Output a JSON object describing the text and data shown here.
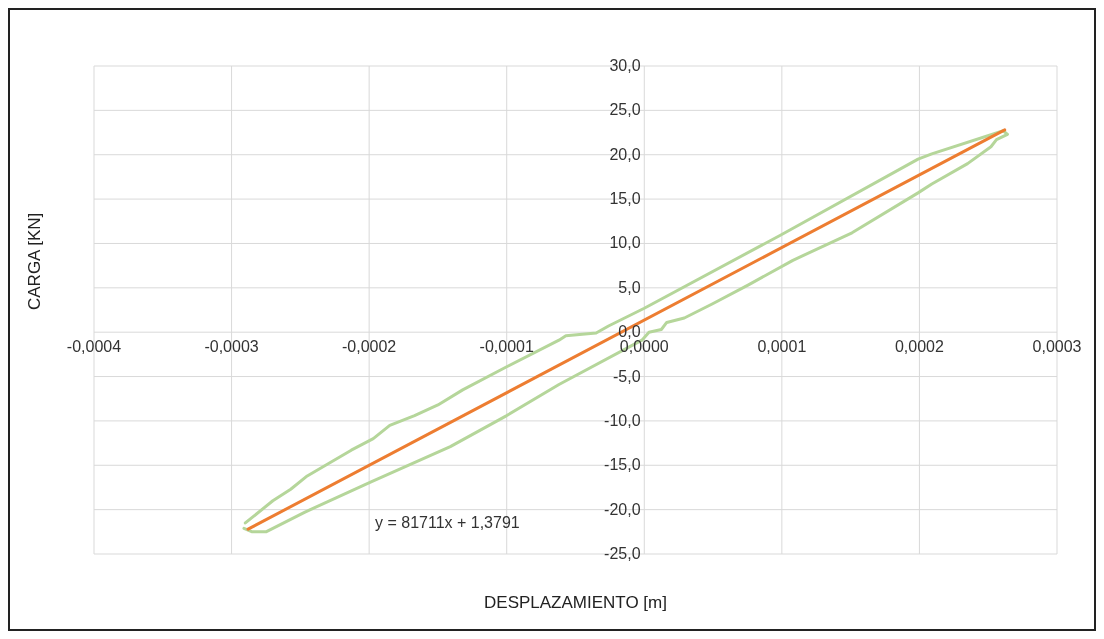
{
  "chart_data": {
    "type": "line",
    "xlabel": "DESPLAZAMIENTO [m]",
    "ylabel": "CARGA [KN]",
    "xlim": [
      -0.0004,
      0.0003
    ],
    "xticks": [
      {
        "value": -0.0004,
        "label": "-0,0004"
      },
      {
        "value": -0.0003,
        "label": "-0,0003"
      },
      {
        "value": -0.0002,
        "label": "-0,0002"
      },
      {
        "value": -0.0001,
        "label": "-0,0001"
      },
      {
        "value": 0,
        "label": "0,0000"
      },
      {
        "value": 0.0001,
        "label": "0,0001"
      },
      {
        "value": 0.0002,
        "label": "0,0002"
      },
      {
        "value": 0.0003,
        "label": "0,0003"
      }
    ],
    "ylim": [
      -25,
      30
    ],
    "yticks": [
      {
        "value": -25,
        "label": "-25,0"
      },
      {
        "value": -20,
        "label": "-20,0"
      },
      {
        "value": -15,
        "label": "-15,0"
      },
      {
        "value": -10,
        "label": "-10,0"
      },
      {
        "value": -5,
        "label": "-5,0"
      },
      {
        "value": 0,
        "label": "0,0"
      },
      {
        "value": 5,
        "label": "5,0"
      },
      {
        "value": 10,
        "label": "10,0"
      },
      {
        "value": 15,
        "label": "15,0"
      },
      {
        "value": 20,
        "label": "20,0"
      },
      {
        "value": 25,
        "label": "25,0"
      },
      {
        "value": 30,
        "label": "30,0"
      }
    ],
    "grid": true,
    "marker": "none",
    "line_style": "solid",
    "annotations": [
      "y = 81711x + 1,3791"
    ],
    "series": [
      {
        "type": "line",
        "color": "#b5d69a",
        "x": [
          -0.00029,
          -0.00027,
          -0.000257,
          -0.000245,
          -0.000213,
          -0.000197,
          -0.000185,
          -0.000167,
          -0.00015,
          -0.000132,
          -0.0001,
          -6.2e-05,
          -5.7e-05,
          -3.5e-05,
          -2.6e-05,
          0,
          9.86e-05,
          0.000199,
          0.000209,
          0.000261,
          0.000264,
          0.000256,
          0.000252,
          0.000235,
          0.000209,
          0.000199,
          0.000151,
          0.000108,
          7.54e-05,
          4.97e-05,
          2.91e-05,
          1.63e-05,
          1.24e-05,
          3.4e-06,
          -1.7e-06,
          -6.2e-05,
          -0.0001,
          -0.000141,
          -0.000199,
          -0.000247,
          -0.000275,
          -0.000285,
          -0.000291
        ],
        "values": [
          -21.5,
          -19.0,
          -17.7,
          -16.2,
          -13.3,
          -12.0,
          -10.5,
          -9.4,
          -8.2,
          -6.5,
          -3.9,
          -0.9,
          -0.4,
          -0.1,
          0.7,
          2.7,
          10.9,
          19.5,
          20.1,
          22.7,
          22.3,
          21.7,
          20.9,
          19.0,
          16.7,
          15.7,
          11.2,
          8.1,
          5.3,
          3.2,
          1.6,
          1.1,
          0.3,
          0.0,
          -0.9,
          -5.9,
          -9.4,
          -12.9,
          -16.9,
          -20.3,
          -22.5,
          -22.5,
          -22.1
        ]
      },
      {
        "type": "line",
        "color": "#ed7d31",
        "x": [
          -0.000288,
          0.000262
        ],
        "values": [
          -22.2,
          22.8
        ]
      }
    ]
  }
}
